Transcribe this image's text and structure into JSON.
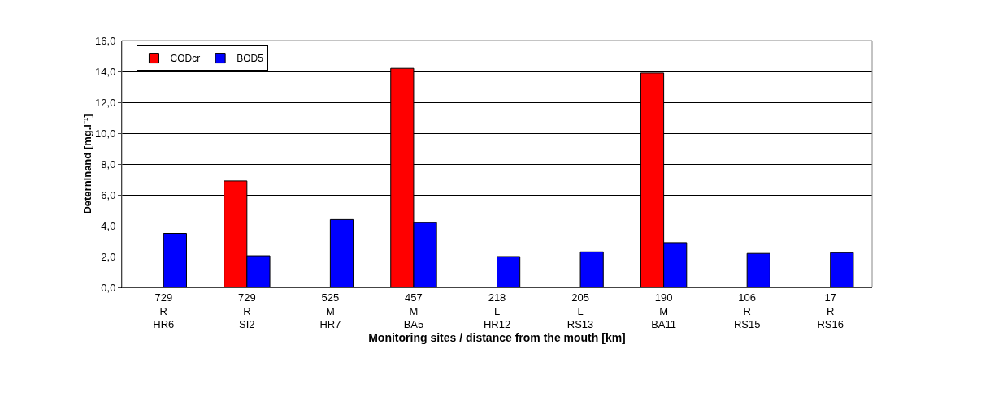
{
  "chart_data": {
    "type": "bar",
    "xlabel": "Monitoring sites / distance from the mouth [km]",
    "ylabel": "Deterninand [mg.l⁻¹]",
    "categories": [
      "729\nR\nHR6",
      "729\nR\nSI2",
      "525\nM\nHR7",
      "457\nM\nBA5",
      "218\nL\nHR12",
      "205\nL\nRS13",
      "190\nM\nBA11",
      "106\nR\nRS15",
      "17\nR\nRS16"
    ],
    "series": [
      {
        "name": "CODcr",
        "color": "#ff0000",
        "values": [
          null,
          6.9,
          null,
          14.2,
          null,
          null,
          13.9,
          null,
          null
        ]
      },
      {
        "name": "BOD5",
        "color": "#0000ff",
        "values": [
          3.5,
          2.05,
          4.4,
          4.2,
          2.0,
          2.3,
          2.9,
          2.2,
          2.25
        ]
      }
    ],
    "ylim": [
      0,
      16
    ],
    "yticks": [
      {
        "value": 0,
        "label": "0,0"
      },
      {
        "value": 2,
        "label": "2,0"
      },
      {
        "value": 4,
        "label": "4,0"
      },
      {
        "value": 6,
        "label": "6,0"
      },
      {
        "value": 8,
        "label": "8,0"
      },
      {
        "value": 10,
        "label": "10,0"
      },
      {
        "value": 12,
        "label": "12,0"
      },
      {
        "value": 14,
        "label": "14,0"
      },
      {
        "value": 16,
        "label": "16,0"
      }
    ],
    "grid": "y",
    "legend": "top left"
  }
}
